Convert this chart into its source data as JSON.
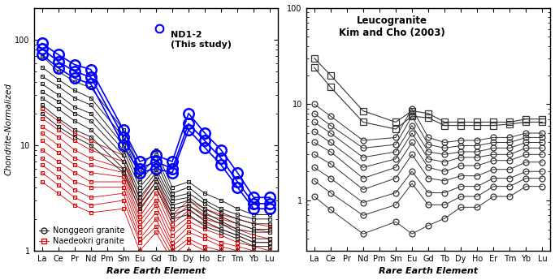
{
  "elements": [
    "La",
    "Ce",
    "Pr",
    "Nd",
    "Pm",
    "Sm",
    "Eu",
    "Gd",
    "Tb",
    "Dy",
    "Ho",
    "Er",
    "Tm",
    "Yb",
    "Lu"
  ],
  "n_elem": 15,
  "nonggeori_series": [
    [
      70,
      50,
      40,
      35,
      null,
      14,
      6,
      9,
      4,
      4.5,
      3.5,
      3.0,
      2.5,
      2.2,
      2.2
    ],
    [
      55,
      42,
      33,
      28,
      null,
      12,
      5,
      8,
      3.5,
      4.0,
      3.0,
      2.5,
      2.2,
      2.0,
      2.0
    ],
    [
      45,
      36,
      28,
      24,
      null,
      10,
      4.5,
      7,
      3.2,
      3.5,
      2.8,
      2.3,
      2.0,
      1.8,
      1.8
    ],
    [
      38,
      30,
      23,
      20,
      null,
      9,
      4,
      6,
      3.0,
      3.2,
      2.5,
      2.1,
      1.8,
      1.6,
      1.6
    ],
    [
      32,
      26,
      20,
      17,
      null,
      8,
      3.5,
      5.5,
      2.7,
      3.0,
      2.3,
      1.9,
      1.6,
      1.5,
      1.5
    ],
    [
      28,
      22,
      17,
      14,
      null,
      7,
      3.2,
      5,
      2.5,
      2.7,
      2.1,
      1.8,
      1.5,
      1.3,
      1.3
    ],
    [
      24,
      18,
      14,
      12,
      null,
      6,
      2.8,
      4.5,
      2.2,
      2.5,
      1.9,
      1.6,
      1.4,
      1.2,
      1.2
    ],
    [
      20,
      15,
      12,
      10,
      null,
      5.5,
      2.5,
      4,
      2.0,
      2.2,
      1.7,
      1.5,
      1.3,
      1.1,
      1.1
    ]
  ],
  "naedeokri_series": [
    [
      22,
      17,
      13,
      11,
      null,
      8,
      3.0,
      5,
      2.2,
      3.0,
      2.5,
      2.2,
      2.0,
      1.8,
      1.7
    ],
    [
      18,
      14,
      11,
      9,
      null,
      7,
      2.7,
      4.5,
      2.0,
      2.7,
      2.2,
      2.0,
      1.8,
      1.6,
      1.5
    ],
    [
      15,
      12,
      9,
      7.5,
      null,
      6,
      2.4,
      4.0,
      1.8,
      2.4,
      2.0,
      1.8,
      1.6,
      1.4,
      1.3
    ],
    [
      13,
      10,
      7.5,
      6.5,
      null,
      5.5,
      2.1,
      3.5,
      1.6,
      2.1,
      1.8,
      1.6,
      1.4,
      1.2,
      1.2
    ],
    [
      11,
      8.5,
      6.5,
      5.5,
      null,
      5,
      1.9,
      3.0,
      1.4,
      1.9,
      1.6,
      1.4,
      1.2,
      1.1,
      1.0
    ],
    [
      9,
      7,
      5.5,
      4.5,
      null,
      4.5,
      1.7,
      2.7,
      1.2,
      1.7,
      1.4,
      1.2,
      1.1,
      1.0,
      0.9
    ],
    [
      7.5,
      6,
      4.5,
      4.0,
      null,
      4,
      1.5,
      2.3,
      1.1,
      1.5,
      1.3,
      1.1,
      1.0,
      0.9,
      0.8
    ],
    [
      6.5,
      5,
      3.8,
      3.2,
      null,
      3.5,
      1.3,
      2.0,
      1.0,
      1.3,
      1.1,
      1.0,
      0.9,
      0.8,
      0.7
    ],
    [
      5.5,
      4.2,
      3.2,
      2.7,
      null,
      3,
      1.2,
      1.7,
      0.9,
      1.2,
      1.0,
      0.9,
      0.8,
      0.7,
      0.65
    ],
    [
      4.5,
      3.5,
      2.7,
      2.3,
      null,
      2.5,
      1.0,
      1.5,
      0.8,
      1.0,
      0.9,
      0.8,
      0.7,
      0.6,
      0.55
    ]
  ],
  "nd12_series": [
    [
      92,
      72,
      58,
      52,
      null,
      14,
      7,
      8,
      7,
      20,
      13,
      9,
      5.5,
      3.2,
      3.2
    ],
    [
      82,
      62,
      50,
      44,
      null,
      12,
      6,
      7,
      6,
      16,
      11,
      7.5,
      4.5,
      2.8,
      2.8
    ],
    [
      72,
      54,
      43,
      38,
      null,
      10,
      5.5,
      6,
      5.5,
      14,
      9.5,
      6.5,
      4.0,
      2.5,
      2.5
    ]
  ],
  "leuco_square_series": [
    [
      30,
      20,
      null,
      8.5,
      null,
      6.5,
      8.5,
      8.0,
      6.5,
      6.5,
      6.5,
      6.5,
      6.5,
      7.0,
      7.0
    ],
    [
      24,
      15,
      null,
      6.5,
      null,
      5.5,
      7.5,
      7.2,
      6.0,
      6.0,
      6.0,
      6.0,
      6.2,
      6.5,
      6.5
    ]
  ],
  "leuco_circle_series": [
    [
      10,
      7.5,
      null,
      4.2,
      null,
      4.5,
      9.0,
      4.5,
      4.0,
      4.2,
      4.2,
      4.5,
      4.5,
      5.0,
      5.0
    ],
    [
      8,
      6.0,
      null,
      3.5,
      null,
      3.8,
      7.5,
      3.8,
      3.5,
      3.7,
      3.7,
      4.0,
      4.0,
      4.5,
      4.5
    ],
    [
      6.5,
      5.0,
      null,
      2.8,
      null,
      3.2,
      6.0,
      3.2,
      3.0,
      3.2,
      3.2,
      3.5,
      3.5,
      4.0,
      4.0
    ],
    [
      5.2,
      4.0,
      null,
      2.2,
      null,
      2.7,
      5.0,
      2.7,
      2.5,
      2.8,
      2.8,
      3.0,
      3.0,
      3.5,
      3.5
    ],
    [
      4.0,
      3.2,
      null,
      1.7,
      null,
      2.2,
      4.0,
      2.2,
      2.0,
      2.3,
      2.3,
      2.6,
      2.6,
      3.0,
      3.0
    ],
    [
      3.0,
      2.4,
      null,
      1.3,
      null,
      1.7,
      3.0,
      1.7,
      1.6,
      1.8,
      1.8,
      2.1,
      2.1,
      2.5,
      2.5
    ],
    [
      2.2,
      1.7,
      null,
      0.95,
      null,
      1.2,
      2.0,
      1.2,
      1.2,
      1.4,
      1.4,
      1.7,
      1.7,
      2.0,
      2.0
    ],
    [
      1.6,
      1.2,
      null,
      0.7,
      null,
      0.9,
      1.5,
      0.9,
      0.9,
      1.1,
      1.1,
      1.4,
      1.4,
      1.7,
      1.7
    ],
    [
      1.1,
      0.8,
      null,
      0.45,
      null,
      0.6,
      0.45,
      0.55,
      0.65,
      0.85,
      0.85,
      1.1,
      1.1,
      1.4,
      1.4
    ]
  ],
  "ylabel": "Chondrite-Normalized",
  "xlabel": "Rare Earth Element",
  "left_label": "ND1-2\n(This study)",
  "left_legend1": "Nonggeori granite",
  "left_legend2": "Naedeokri granite",
  "right_label": "Leucogranite\nKim and Cho (2003)",
  "ylim_left": [
    1,
    200
  ],
  "ylim_right": [
    0.3,
    100
  ],
  "bg_color": "#f5f5f5"
}
